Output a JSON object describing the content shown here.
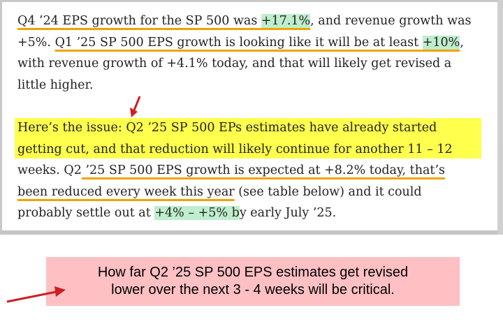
{
  "excerpt": {
    "para1": {
      "s1": "Q4 ’24 EPS growth for the SP 500 was ",
      "s1_pct": "+17.1%",
      "s2": ", and revenue growth was +5%. ",
      "s3": "Q1 ’25 SP 500 EPS growth is looking like it will be at least ",
      "s3_pct": "+10%",
      "s4": ", with revenue growth of +4.1% today, and that will likely get revised a little higher."
    },
    "para2": {
      "s1": "Here’s the issue: Q2 ’25 SP 500 EPs estimates have already started getting cut, and that reduction will likely continue for another 11 – 12 weeks. Q2",
      "s2": " ’25 SP 500 EPS growth is expected at +8.2% today, that’s been reduced every week this year",
      "s3": " (see table below) and it could probably settle out at ",
      "s3_pct": "+4% – +5% b",
      "s4": "y early July ’25."
    }
  },
  "callout": {
    "line1": "How far Q2 ’25 SP 500 EPS estimates get revised",
    "line2": "lower over the next 3 - 4 weeks will be critical."
  },
  "colors": {
    "highlight_yellow": "#ffff4d",
    "highlight_green": "#bfeecd",
    "underline_orange": "#f0a300",
    "arrow_red": "#cc1f1f",
    "callout_bg": "#ffc0c4"
  }
}
